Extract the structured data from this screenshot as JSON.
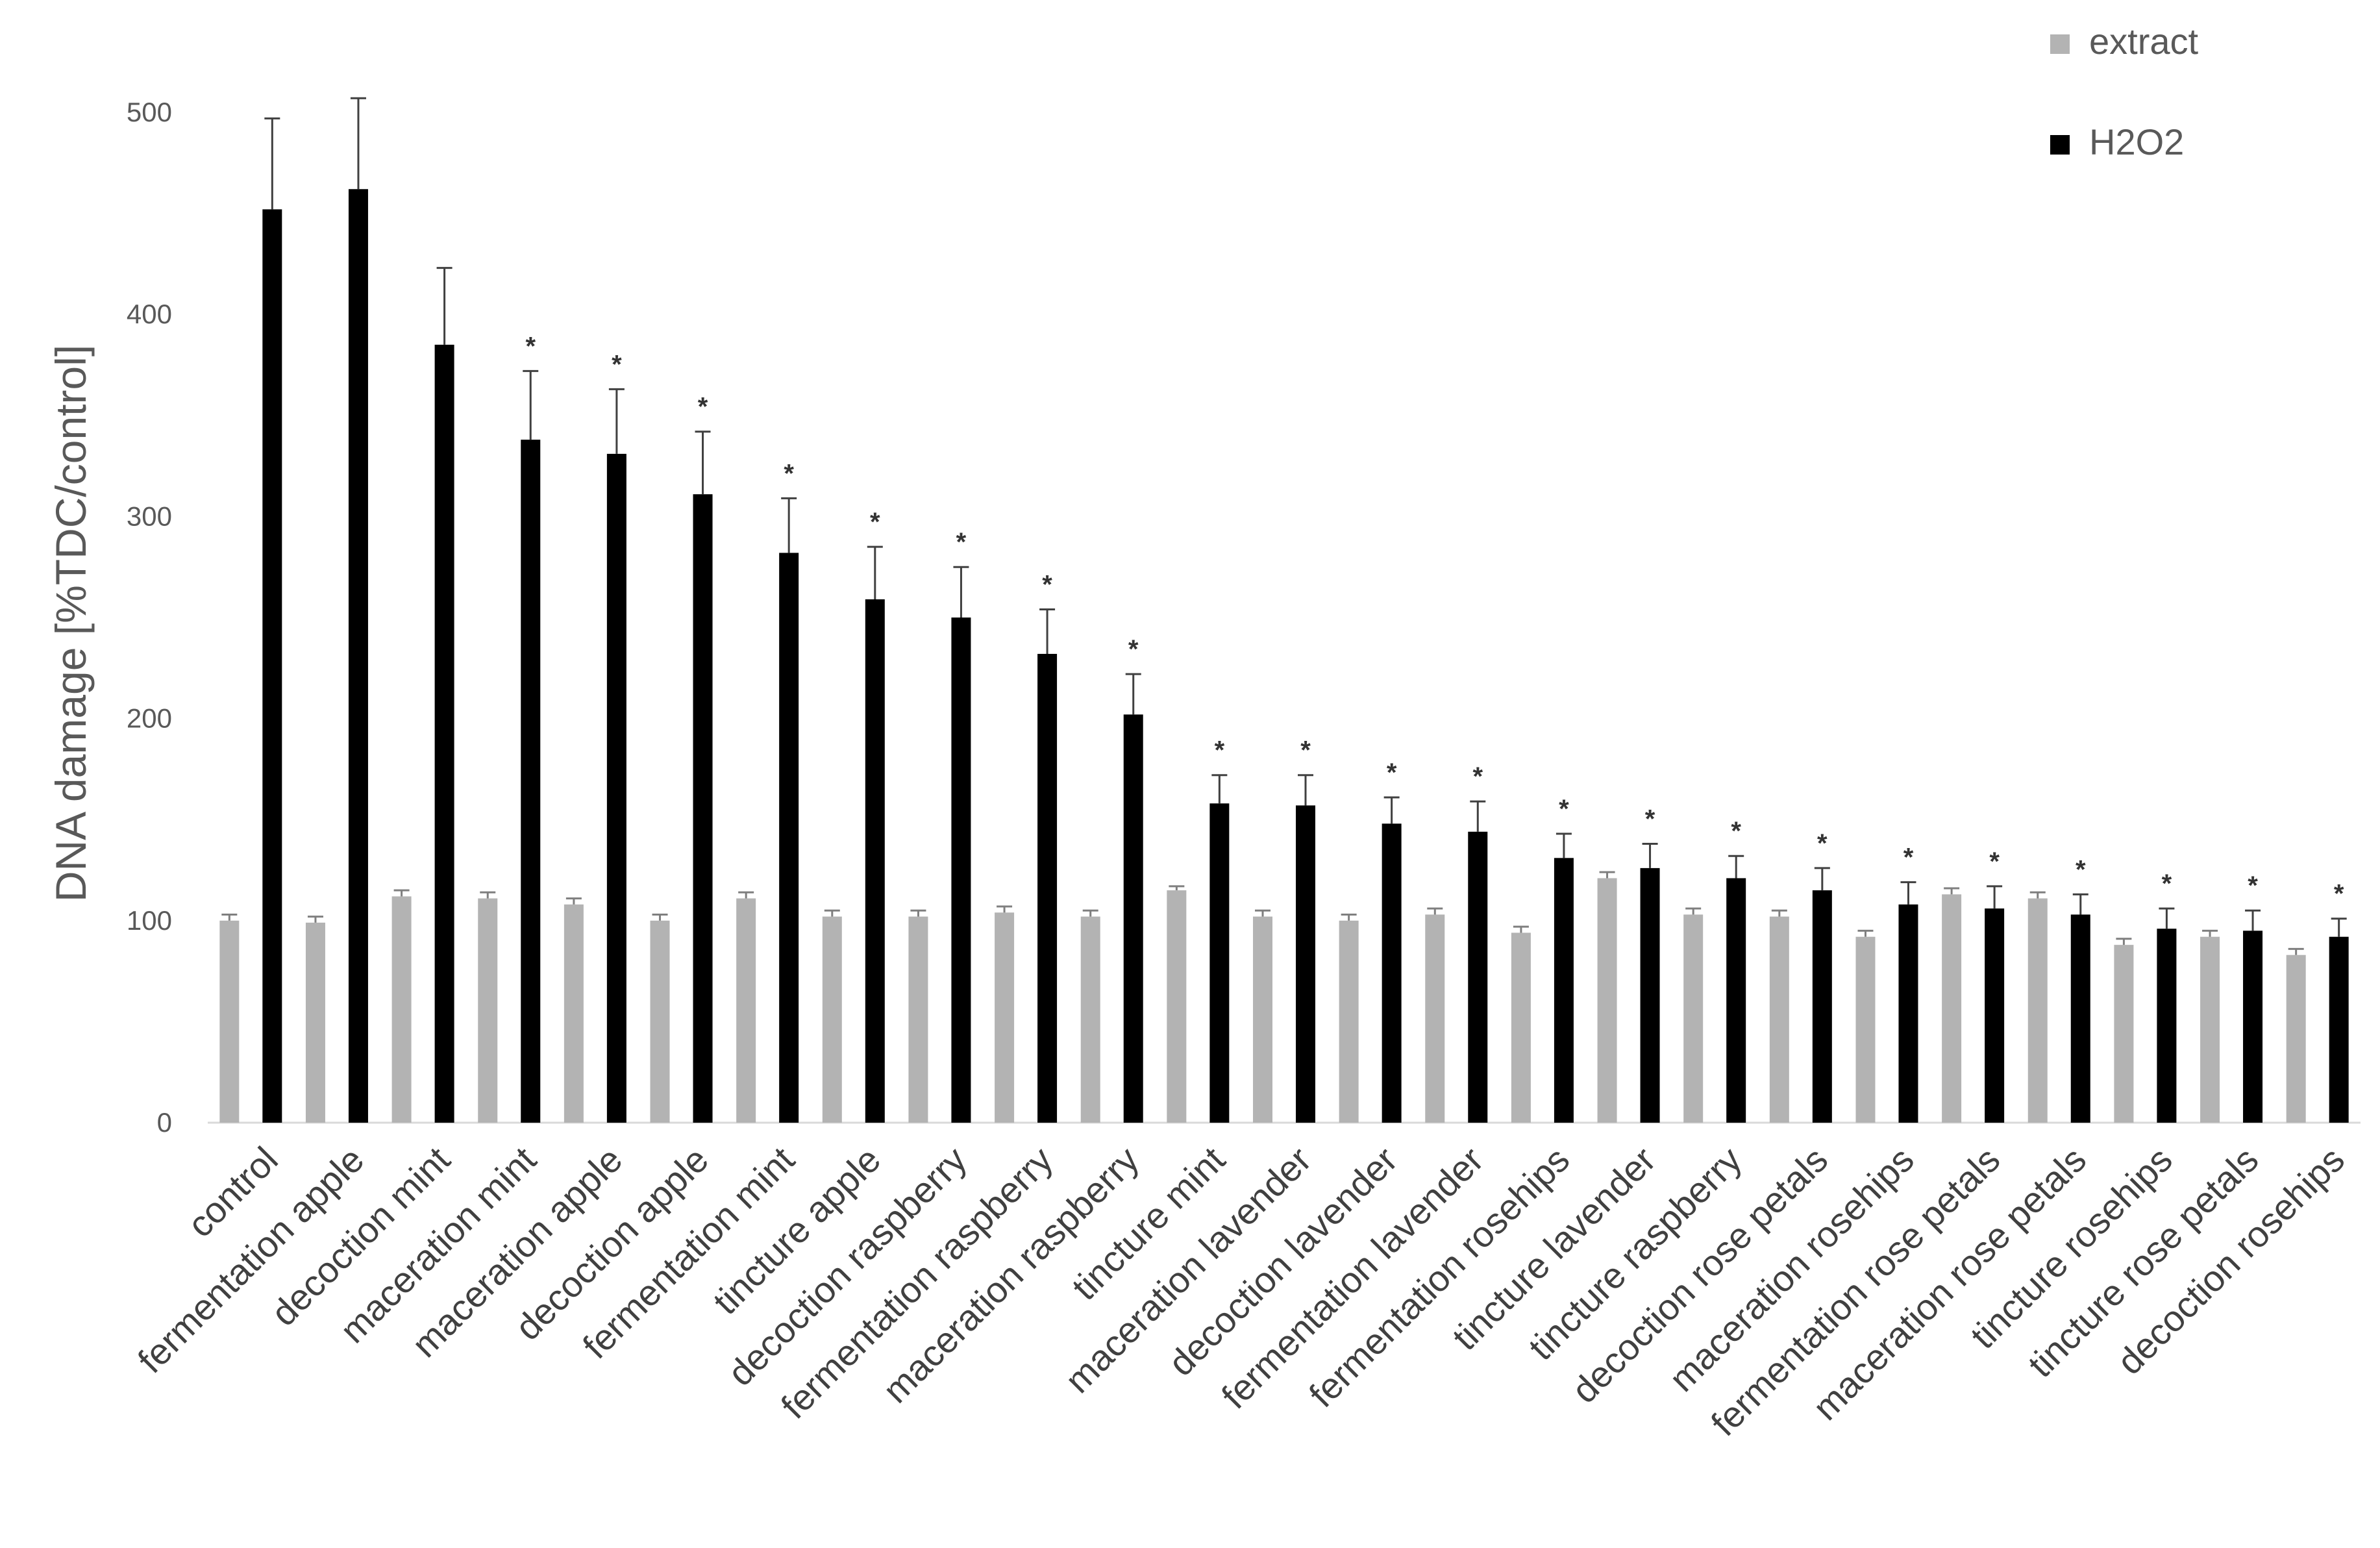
{
  "chart_data": {
    "type": "bar",
    "title": "",
    "xlabel": "",
    "ylabel": "DNA damage [%TDC/control]",
    "ylim": [
      0,
      500
    ],
    "yticks": [
      0,
      100,
      200,
      300,
      400,
      500
    ],
    "grid": false,
    "legend_position": "top-right",
    "categories": [
      "control",
      "fermentation apple",
      "decoction mint",
      "maceration mint",
      "maceration apple",
      "decoction apple",
      "fermentation mint",
      "tincture apple",
      "decoction raspberry",
      "fermentation raspberry",
      "maceration raspberry",
      "tincture mint",
      "maceration lavender",
      "decoction lavender",
      "fermentation lavender",
      "fermentation rosehips",
      "tincture lavender",
      "tincture raspberry",
      "decoction rose petals",
      "maceration rosehips",
      "fermentation rose petals",
      "maceration rose petals",
      "tincture rosehips",
      "tincture rose petals",
      "decoction rosehips"
    ],
    "series": [
      {
        "name": "extract",
        "color": "#b3b3b3",
        "values": [
          100,
          99,
          112,
          111,
          108,
          100,
          111,
          102,
          102,
          104,
          102,
          115,
          102,
          100,
          103,
          94,
          121,
          103,
          102,
          92,
          113,
          111,
          88,
          92,
          83
        ],
        "errors": [
          3,
          3,
          3,
          3,
          3,
          3,
          3,
          3,
          3,
          3,
          3,
          2,
          3,
          3,
          3,
          3,
          3,
          3,
          3,
          3,
          3,
          3,
          3,
          3,
          3
        ]
      },
      {
        "name": "H2O2",
        "color": "#000000",
        "values": [
          452,
          462,
          385,
          338,
          331,
          311,
          282,
          259,
          250,
          232,
          202,
          158,
          157,
          148,
          144,
          131,
          126,
          121,
          115,
          108,
          106,
          103,
          96,
          95,
          92
        ],
        "errors": [
          45,
          45,
          38,
          34,
          32,
          31,
          27,
          26,
          25,
          22,
          20,
          14,
          15,
          13,
          15,
          12,
          12,
          11,
          11,
          11,
          11,
          10,
          10,
          10,
          9
        ]
      }
    ],
    "significance_marker": "*",
    "significant_h2o2": [
      false,
      false,
      false,
      true,
      true,
      true,
      true,
      true,
      true,
      true,
      true,
      true,
      true,
      true,
      true,
      true,
      true,
      true,
      true,
      true,
      true,
      true,
      true,
      true,
      true
    ]
  }
}
